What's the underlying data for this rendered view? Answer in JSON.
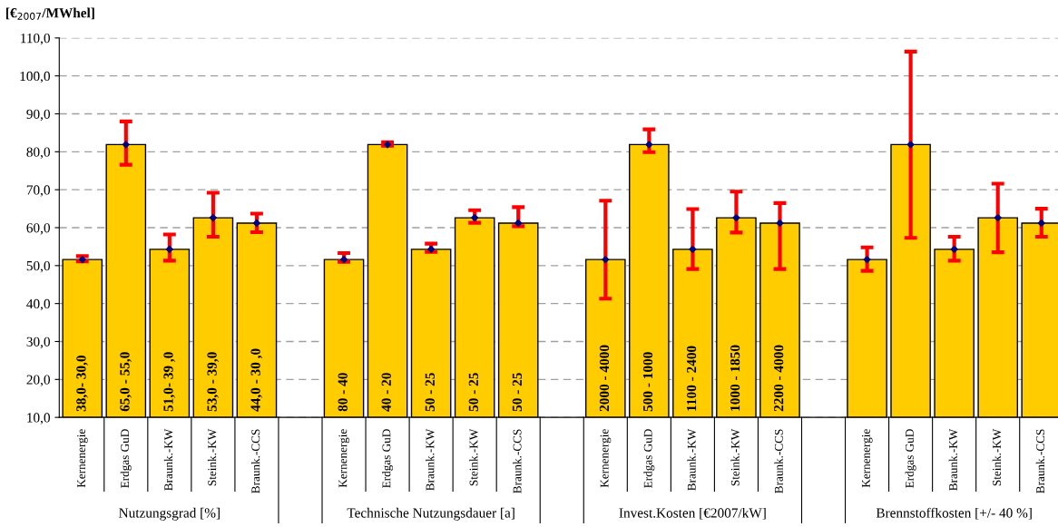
{
  "chart_data": {
    "type": "bar",
    "ylabel": "[€$_{2007}$/MWhel]",
    "categories": [
      "Kernenergie",
      "Erdgas GuD",
      "Braunk.-KW",
      "Steink.-KW",
      "Braunk.-CCS",
      null,
      "Kernenergie",
      "Erdgas GuD",
      "Braunk.-KW",
      "Steink.-KW",
      "Braunk.-CCS",
      null,
      "Kernenergie",
      "Erdgas GuD",
      "Braunk.-KW",
      "Steink.-KW",
      "Braunk.-CCS",
      null,
      "Kernenergie",
      "Erdgas GuD",
      "Braunk.-KW",
      "Steink.-KW",
      "Braunk.-CCS"
    ],
    "series": [
      {
        "color": "#ffcc00",
        "values": [
          51.6,
          81.9,
          54.3,
          62.6,
          61.2,
          null,
          51.6,
          81.9,
          54.3,
          62.6,
          61.2,
          null,
          51.6,
          81.9,
          54.3,
          62.6,
          61.2,
          null,
          51.6,
          81.9,
          54.3,
          62.6,
          61.2
        ],
        "errors": [
          [
            51.1,
            52.5
          ],
          [
            76.6,
            88.0
          ],
          [
            51.3,
            58.2
          ],
          [
            57.6,
            69.2
          ],
          [
            58.8,
            63.7
          ],
          null,
          [
            51.0,
            53.3
          ],
          [
            81.6,
            82.5
          ],
          [
            53.6,
            55.8
          ],
          [
            61.3,
            64.6
          ],
          [
            60.4,
            65.4
          ],
          null,
          [
            41.3,
            67.1
          ],
          [
            79.9,
            85.9
          ],
          [
            49.1,
            64.9
          ],
          [
            58.7,
            69.5
          ],
          [
            49.1,
            66.5
          ],
          null,
          [
            48.6,
            54.8
          ],
          [
            57.3,
            106.4
          ],
          [
            51.3,
            57.6
          ],
          [
            53.5,
            71.6
          ],
          [
            57.6,
            65.0
          ]
        ]
      },
      {
        "type": "scatter",
        "color": "#000080",
        "values": [
          51.6,
          81.9,
          54.3,
          62.6,
          61.2,
          null,
          51.6,
          81.9,
          54.3,
          62.6,
          61.2,
          null,
          51.6,
          81.9,
          54.3,
          62.6,
          61.2,
          null,
          51.6,
          81.9,
          54.3,
          62.6,
          61.2
        ]
      }
    ],
    "marker": "diamond",
    "ylim": [
      10,
      110
    ],
    "yticks": [
      {
        "value": 10,
        "label": "10,0"
      },
      {
        "value": 20,
        "label": "20,0"
      },
      {
        "value": 30,
        "label": "30,0"
      },
      {
        "value": 40,
        "label": "40,0"
      },
      {
        "value": 50,
        "label": "50,0"
      },
      {
        "value": 60,
        "label": "60,0"
      },
      {
        "value": 70,
        "label": "70,0"
      },
      {
        "value": 80,
        "label": "80,0"
      },
      {
        "value": 90,
        "label": "90,0"
      },
      {
        "value": 100,
        "label": "100,0"
      },
      {
        "value": 110,
        "label": "110,0"
      }
    ],
    "grid": "y",
    "annotations": [
      "Nutzungsgrad [%]",
      "Technische Nutzungsdauer [a]",
      "Invest.Kosten [€2007/kW]",
      "Brennstoffkosten [+/- 40 %]",
      "38,0- 30,0",
      "65,0 - 55,0",
      "51,0- 39 ,0",
      "53,0 - 39,0",
      "44,0 - 30 ,0",
      "80 - 40",
      "40 - 20",
      "50 - 25",
      "50 - 25",
      "50 - 25",
      "2000 - 4000",
      "500 - 1000",
      "1100 - 2400",
      "1000 - 1850",
      "2200 - 4000"
    ]
  }
}
